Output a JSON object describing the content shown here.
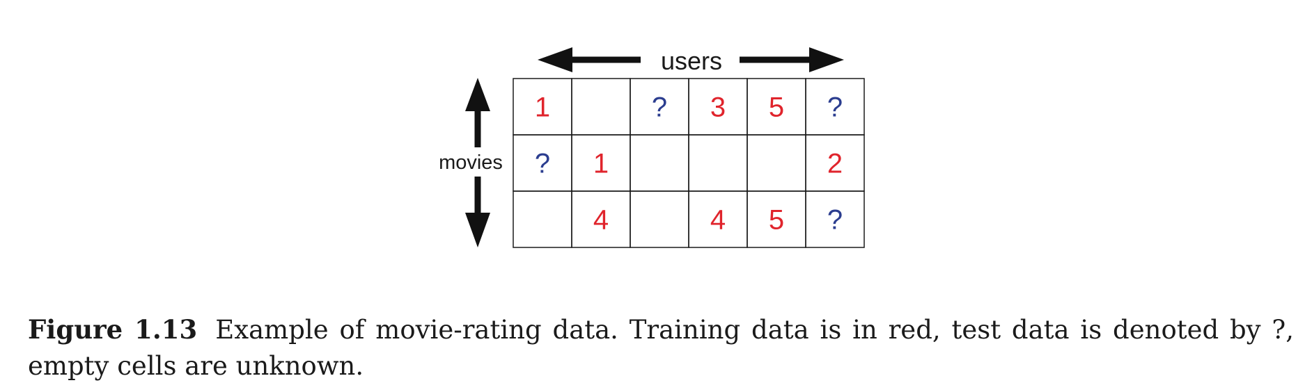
{
  "axes": {
    "users_label": "users",
    "movies_label": "movies"
  },
  "matrix": {
    "rows": [
      [
        {
          "text": "1",
          "kind": "train"
        },
        {
          "text": "",
          "kind": "empty"
        },
        {
          "text": "?",
          "kind": "test"
        },
        {
          "text": "3",
          "kind": "train"
        },
        {
          "text": "5",
          "kind": "train"
        },
        {
          "text": "?",
          "kind": "test"
        }
      ],
      [
        {
          "text": "?",
          "kind": "test"
        },
        {
          "text": "1",
          "kind": "train"
        },
        {
          "text": "",
          "kind": "empty"
        },
        {
          "text": "",
          "kind": "empty"
        },
        {
          "text": "",
          "kind": "empty"
        },
        {
          "text": "2",
          "kind": "train"
        }
      ],
      [
        {
          "text": "",
          "kind": "empty"
        },
        {
          "text": "4",
          "kind": "train"
        },
        {
          "text": "",
          "kind": "empty"
        },
        {
          "text": "4",
          "kind": "train"
        },
        {
          "text": "5",
          "kind": "train"
        },
        {
          "text": "?",
          "kind": "test"
        }
      ]
    ]
  },
  "colors": {
    "train": "#e0242c",
    "test": "#2b3d8f",
    "grid": "#1a1a1a",
    "arrow": "#111111"
  },
  "caption": {
    "label": "Figure 1.13",
    "text": "Example of movie-rating data. Training data is in red, test data is denoted by ?, empty cells are unknown."
  }
}
